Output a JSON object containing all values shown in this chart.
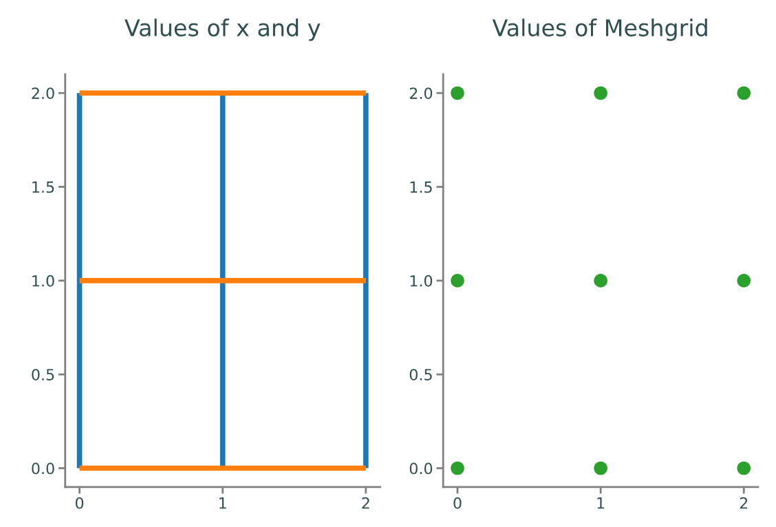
{
  "chart_data": [
    {
      "type": "line",
      "title": "Values of x and y",
      "xlim": [
        -0.1,
        2.1
      ],
      "ylim": [
        -0.1,
        2.1
      ],
      "xticks": [
        0,
        1,
        2
      ],
      "yticks": [
        {
          "value": 0,
          "label": "0.0"
        },
        {
          "value": 0.5,
          "label": "0.5"
        },
        {
          "value": 1,
          "label": "1.0"
        },
        {
          "value": 1.5,
          "label": "1.5"
        },
        {
          "value": 2,
          "label": "2.0"
        }
      ],
      "grid": false,
      "legend": false,
      "marker": "none",
      "line_style": "solid",
      "series": [
        {
          "color": "#1f77b4",
          "x": [
            0,
            0
          ],
          "values": [
            0,
            2
          ]
        },
        {
          "color": "#1f77b4",
          "x": [
            1,
            1
          ],
          "values": [
            0,
            2
          ]
        },
        {
          "color": "#1f77b4",
          "x": [
            2,
            2
          ],
          "values": [
            0,
            2
          ]
        },
        {
          "color": "#ff7f0e",
          "x": [
            0,
            2
          ],
          "values": [
            0,
            0
          ]
        },
        {
          "color": "#ff7f0e",
          "x": [
            0,
            2
          ],
          "values": [
            1,
            1
          ]
        },
        {
          "color": "#ff7f0e",
          "x": [
            0,
            2
          ],
          "values": [
            2,
            2
          ]
        }
      ]
    },
    {
      "type": "scatter",
      "title": "Values of Meshgrid",
      "xlim": [
        -0.1,
        2.1
      ],
      "ylim": [
        -0.1,
        2.1
      ],
      "xticks": [
        0,
        1,
        2
      ],
      "yticks": [
        {
          "value": 0,
          "label": "0.0"
        },
        {
          "value": 0.5,
          "label": "0.5"
        },
        {
          "value": 1,
          "label": "1.0"
        },
        {
          "value": 1.5,
          "label": "1.5"
        },
        {
          "value": 2,
          "label": "2.0"
        }
      ],
      "grid": false,
      "legend": false,
      "marker": "circle",
      "series": [
        {
          "color": "#2ca02c",
          "x": [
            0,
            1,
            2,
            0,
            1,
            2,
            0,
            1,
            2
          ],
          "values": [
            0,
            0,
            0,
            1,
            1,
            1,
            2,
            2,
            2
          ]
        }
      ]
    }
  ]
}
